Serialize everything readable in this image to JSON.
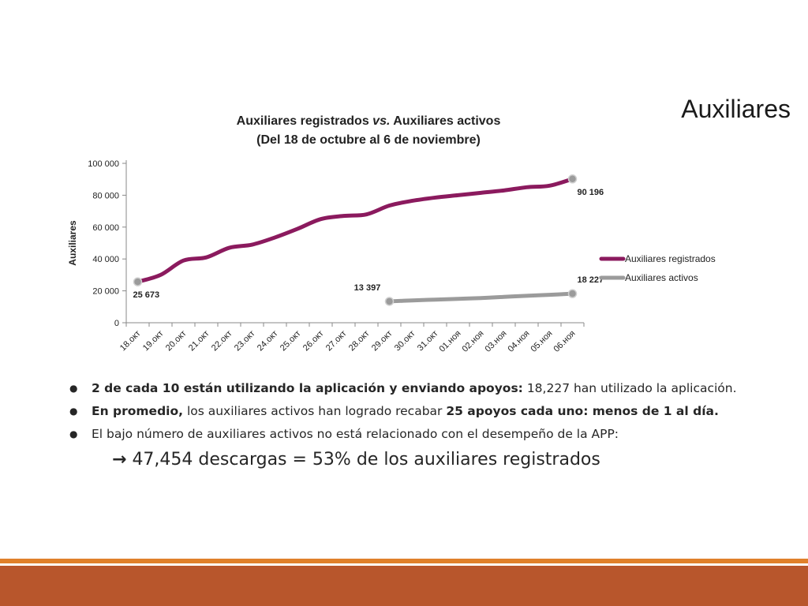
{
  "slide": {
    "title": "Auxiliares",
    "colors": {
      "accent_thin": "#e0802a",
      "accent_thick": "#b8562c"
    }
  },
  "chart_data": {
    "type": "line",
    "title": "Auxiliares registrados vs. Auxiliares activos",
    "title_pre": "Auxiliares registrados ",
    "title_em": "vs.",
    "title_post": " Auxiliares activos",
    "subtitle": "(Del 18 de octubre al 6 de noviembre)",
    "xlabel": "",
    "ylabel": "Auxiliares",
    "ylim": [
      0,
      100000
    ],
    "yticks": [
      0,
      20000,
      40000,
      60000,
      80000,
      100000
    ],
    "ytick_labels": [
      "0",
      "20 000",
      "40 000",
      "60 000",
      "80 000",
      "100 000"
    ],
    "grid": false,
    "legend_position": "right",
    "categories": [
      "18.окт",
      "19.окт",
      "20.окт",
      "21.окт",
      "22.окт",
      "23.окт",
      "24.окт",
      "25.окт",
      "26.окт",
      "27.окт",
      "28.окт",
      "29.окт",
      "30.окт",
      "31.окт",
      "01.ноя",
      "02.ноя",
      "03.ноя",
      "04.ноя",
      "05.ноя",
      "06.ноя"
    ],
    "series": [
      {
        "name": "Auxiliares registrados",
        "color": "#8b1a5e",
        "values": [
          25673,
          30000,
          39000,
          41000,
          47000,
          49000,
          53500,
          59000,
          65000,
          67000,
          68000,
          73500,
          76500,
          78500,
          80000,
          81500,
          83000,
          85000,
          86000,
          90196
        ]
      },
      {
        "name": "Auxiliares activos",
        "color": "#9b9b9b",
        "values": [
          null,
          null,
          null,
          null,
          null,
          null,
          null,
          null,
          null,
          null,
          null,
          13397,
          14000,
          14500,
          15000,
          15500,
          16200,
          16900,
          17500,
          18227
        ]
      }
    ],
    "data_labels": [
      {
        "series": 0,
        "index": 0,
        "text": "25 673",
        "pos": "below"
      },
      {
        "series": 0,
        "index": 19,
        "text": "90 196",
        "pos": "below"
      },
      {
        "series": 1,
        "index": 11,
        "text": "13 397",
        "pos": "above"
      },
      {
        "series": 1,
        "index": 19,
        "text": "18 227",
        "pos": "above"
      }
    ]
  },
  "bullets": [
    {
      "bold": "2 de cada 10 están utilizando la aplicación y enviando apoyos:",
      "text": " 18,227 han utilizado la aplicación.",
      "bold2": ""
    },
    {
      "bold": "En promedio,",
      "text": " los auxiliares activos han logrado recabar ",
      "bold2": "25 apoyos cada uno: menos de 1 al día."
    },
    {
      "bold": "",
      "text": "El bajo número de auxiliares activos no está relacionado con el desempeño de la APP:",
      "bold2": ""
    }
  ],
  "conclusion": {
    "arrow": "→",
    "text": "47,454 descargas = 53% de los auxiliares registrados"
  }
}
